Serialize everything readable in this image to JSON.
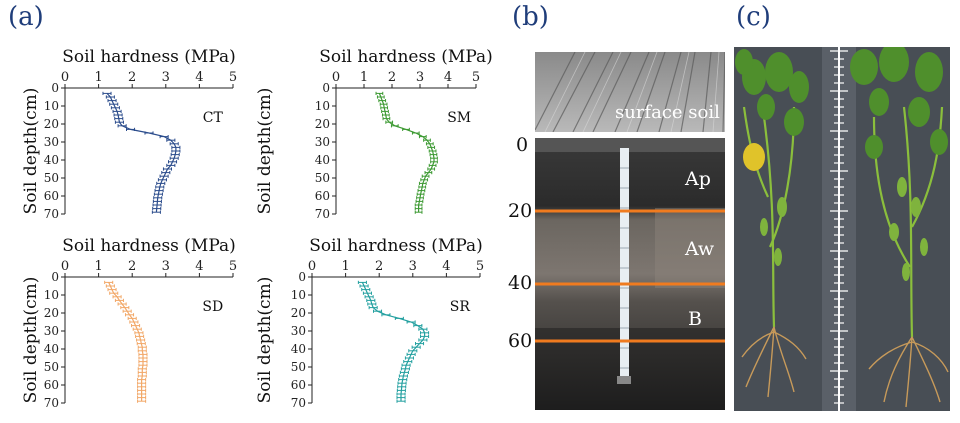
{
  "panels": {
    "a": "(a)",
    "b": "(b)",
    "c": "(c)"
  },
  "chart_data": [
    {
      "type": "line",
      "name": "CT",
      "xlabel": "Soil hardness (MPa)",
      "ylabel": "Soil depth(cm)",
      "xlim": [
        0,
        5
      ],
      "ylim": [
        0,
        70
      ],
      "xticks": [
        0,
        1,
        2,
        3,
        4,
        5
      ],
      "yticks": [
        0,
        10,
        20,
        30,
        40,
        50,
        60,
        70
      ],
      "color": "#2b4c8c",
      "depth": [
        3,
        5,
        7,
        9,
        11,
        13,
        15,
        17,
        19,
        21,
        23,
        25,
        27,
        29,
        31,
        33,
        35,
        37,
        39,
        41,
        43,
        45,
        47,
        49,
        51,
        53,
        55,
        57,
        59,
        61,
        63,
        65,
        67,
        69
      ],
      "hardness": [
        1.25,
        1.35,
        1.4,
        1.45,
        1.5,
        1.55,
        1.58,
        1.6,
        1.62,
        1.7,
        1.95,
        2.5,
        2.95,
        3.15,
        3.25,
        3.3,
        3.3,
        3.28,
        3.25,
        3.2,
        3.15,
        3.05,
        3.0,
        2.95,
        2.9,
        2.85,
        2.82,
        2.8,
        2.78,
        2.76,
        2.75,
        2.74,
        2.73,
        2.72
      ]
    },
    {
      "type": "line",
      "name": "SM",
      "xlabel": "Soil hardness (MPa)",
      "ylabel": "Soil depth(cm)",
      "xlim": [
        0,
        5
      ],
      "ylim": [
        0,
        70
      ],
      "xticks": [
        0,
        1,
        2,
        3,
        4,
        5
      ],
      "yticks": [
        0,
        10,
        20,
        30,
        40,
        50,
        60,
        70
      ],
      "color": "#3d9a33",
      "depth": [
        3,
        5,
        7,
        9,
        11,
        13,
        15,
        17,
        19,
        21,
        23,
        25,
        27,
        29,
        31,
        33,
        35,
        37,
        39,
        41,
        43,
        45,
        47,
        49,
        51,
        53,
        55,
        57,
        59,
        61,
        63,
        65,
        67,
        69
      ],
      "hardness": [
        1.55,
        1.6,
        1.65,
        1.7,
        1.72,
        1.75,
        1.78,
        1.8,
        1.9,
        2.1,
        2.5,
        2.85,
        3.1,
        3.25,
        3.35,
        3.4,
        3.45,
        3.48,
        3.5,
        3.5,
        3.45,
        3.4,
        3.3,
        3.2,
        3.15,
        3.1,
        3.08,
        3.05,
        3.02,
        3.0,
        2.98,
        2.95,
        2.95,
        2.95
      ]
    },
    {
      "type": "line",
      "name": "SD",
      "xlabel": "Soil hardness (MPa)",
      "ylabel": "Soil depth(cm)",
      "xlim": [
        0,
        5
      ],
      "ylim": [
        0,
        70
      ],
      "xticks": [
        0,
        1,
        2,
        3,
        4,
        5
      ],
      "yticks": [
        0,
        10,
        20,
        30,
        40,
        50,
        60,
        70
      ],
      "color": "#f2a868",
      "depth": [
        3,
        5,
        7,
        9,
        11,
        13,
        15,
        17,
        19,
        21,
        23,
        25,
        27,
        29,
        31,
        33,
        35,
        37,
        39,
        41,
        43,
        45,
        47,
        49,
        51,
        53,
        55,
        57,
        59,
        61,
        63,
        65,
        67,
        69
      ],
      "hardness": [
        1.3,
        1.35,
        1.4,
        1.45,
        1.55,
        1.62,
        1.7,
        1.78,
        1.85,
        1.92,
        2.0,
        2.05,
        2.1,
        2.15,
        2.2,
        2.22,
        2.25,
        2.27,
        2.3,
        2.3,
        2.32,
        2.32,
        2.32,
        2.32,
        2.3,
        2.3,
        2.3,
        2.28,
        2.28,
        2.28,
        2.28,
        2.28,
        2.28,
        2.28
      ]
    },
    {
      "type": "line",
      "name": "SR",
      "xlabel": "Soil hardness (MPa)",
      "ylabel": "Soil depth(cm)",
      "xlim": [
        0,
        5
      ],
      "ylim": [
        0,
        70
      ],
      "xticks": [
        0,
        1,
        2,
        3,
        4,
        5
      ],
      "yticks": [
        0,
        10,
        20,
        30,
        40,
        50,
        60,
        70
      ],
      "color": "#23a0a0",
      "depth": [
        3,
        5,
        7,
        9,
        11,
        13,
        15,
        17,
        19,
        21,
        23,
        25,
        27,
        29,
        31,
        33,
        35,
        37,
        39,
        41,
        43,
        45,
        47,
        49,
        51,
        53,
        55,
        57,
        59,
        61,
        63,
        65,
        67,
        69
      ],
      "hardness": [
        1.5,
        1.55,
        1.6,
        1.65,
        1.7,
        1.75,
        1.78,
        1.82,
        1.95,
        2.2,
        2.6,
        2.95,
        3.15,
        3.3,
        3.35,
        3.35,
        3.3,
        3.2,
        3.1,
        3.0,
        2.95,
        2.9,
        2.85,
        2.8,
        2.78,
        2.75,
        2.72,
        2.7,
        2.68,
        2.67,
        2.66,
        2.65,
        2.65,
        2.65
      ]
    }
  ],
  "soil_profile": {
    "surface_label": "surface soil",
    "layers": [
      "Ap",
      "Aw",
      "B"
    ],
    "depth_ticks": [
      "0",
      "20",
      "40",
      "60"
    ]
  }
}
